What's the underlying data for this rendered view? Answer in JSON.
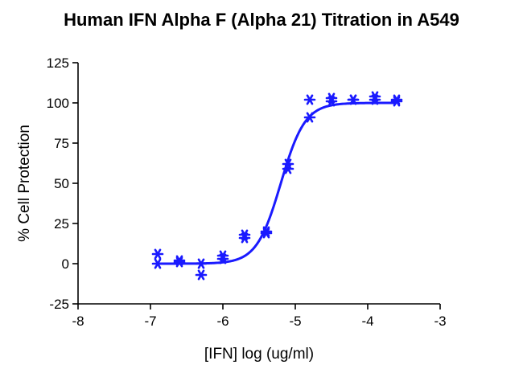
{
  "chart_data": {
    "type": "scatter",
    "title": "Human IFN Alpha F (Alpha 21) Titration in A549",
    "xlabel": "[IFN] log (ug/ml)",
    "ylabel": "% Cell Protection",
    "xlim": [
      -8,
      -3
    ],
    "ylim": [
      -25,
      125
    ],
    "x_ticks": [
      -8,
      -7,
      -6,
      -5,
      -4,
      -3
    ],
    "y_ticks": [
      -25,
      0,
      25,
      50,
      75,
      100,
      125
    ],
    "marker_color": "#1a1aff",
    "curve_color": "#1a1aff",
    "series": [
      {
        "marker": "asterisk",
        "x": [
          -6.9,
          -6.9,
          -6.6,
          -6.6,
          -6.3,
          -6.3,
          -6.0,
          -6.0,
          -5.7,
          -5.7,
          -5.4,
          -5.4,
          -5.1,
          -5.1,
          -4.8,
          -4.8,
          -4.5,
          -4.5,
          -4.2,
          -4.2,
          -3.9,
          -3.9,
          -3.6,
          -3.6
        ],
        "y": [
          6,
          0,
          2,
          1,
          0,
          -7,
          5,
          3,
          18,
          16,
          20,
          19,
          62,
          59,
          102,
          91,
          103,
          101,
          102,
          102,
          104,
          102,
          102,
          101
        ]
      }
    ],
    "fit_curve": {
      "model": "4PL",
      "bottom": 0,
      "top": 100,
      "logEC50": -5.2,
      "hill": 2.6,
      "x_range": [
        -6.9,
        -3.6
      ]
    }
  }
}
